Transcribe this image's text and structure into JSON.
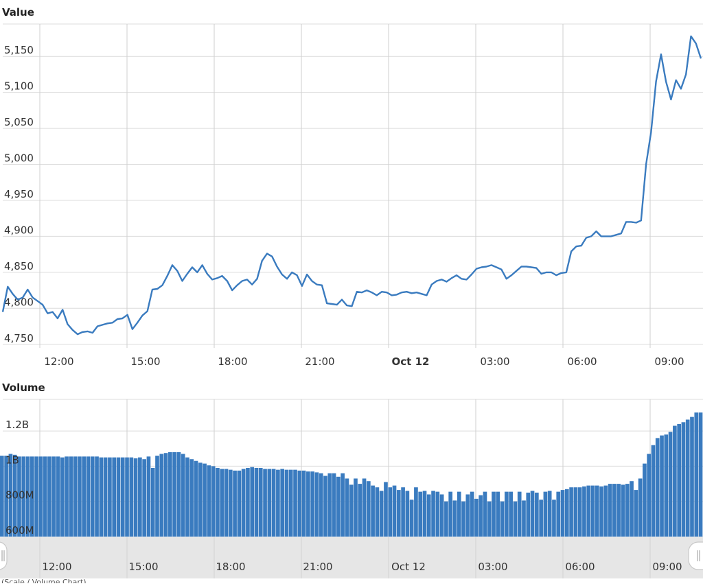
{
  "chart_data": [
    {
      "type": "line",
      "title": "Value",
      "color": "#3a7bbf",
      "ylim": [
        4745,
        5195
      ],
      "y_ticks": [
        "4,750",
        "4,800",
        "4,850",
        "4,900",
        "4,950",
        "5,000",
        "5,050",
        "5,100",
        "5,150"
      ],
      "x_ticks": [
        {
          "label": "12:00",
          "bold": false
        },
        {
          "label": "15:00",
          "bold": false
        },
        {
          "label": "18:00",
          "bold": false
        },
        {
          "label": "21:00",
          "bold": false
        },
        {
          "label": "Oct 12",
          "bold": true
        },
        {
          "label": "03:00",
          "bold": false
        },
        {
          "label": "06:00",
          "bold": false
        },
        {
          "label": "09:00",
          "bold": false
        }
      ],
      "x_start": "Oct 11 10:42",
      "x_end": "Oct 12 10:45",
      "time_step_minutes": 10,
      "grid": true,
      "values": [
        4795,
        4830,
        4820,
        4812,
        4815,
        4826,
        4815,
        4810,
        4805,
        4793,
        4795,
        4786,
        4798,
        4778,
        4770,
        4764,
        4767,
        4768,
        4766,
        4775,
        4777,
        4779,
        4780,
        4785,
        4786,
        4791,
        4771,
        4780,
        4790,
        4796,
        4826,
        4827,
        4832,
        4845,
        4860,
        4852,
        4838,
        4848,
        4857,
        4850,
        4860,
        4848,
        4840,
        4842,
        4845,
        4838,
        4825,
        4832,
        4838,
        4840,
        4833,
        4841,
        4866,
        4876,
        4872,
        4858,
        4847,
        4841,
        4850,
        4846,
        4831,
        4847,
        4838,
        4833,
        4832,
        4807,
        4806,
        4805,
        4812,
        4804,
        4803,
        4823,
        4822,
        4825,
        4822,
        4818,
        4823,
        4822,
        4818,
        4819,
        4822,
        4823,
        4821,
        4822,
        4820,
        4818,
        4833,
        4838,
        4840,
        4837,
        4842,
        4846,
        4841,
        4840,
        4847,
        4855,
        4857,
        4858,
        4860,
        4857,
        4854,
        4841,
        4846,
        4852,
        4858,
        4858,
        4857,
        4856,
        4848,
        4850,
        4850,
        4846,
        4849,
        4850,
        4879,
        4886,
        4887,
        4898,
        4900,
        4907,
        4900,
        4900,
        4900,
        4902,
        4904,
        4920,
        4920,
        4919,
        4922,
        5000,
        5045,
        5115,
        5153,
        5115,
        5090,
        5117,
        5105,
        5125,
        5178,
        5168,
        5147
      ],
      "y_suffix": ""
    },
    {
      "type": "bar",
      "title": "Volume",
      "color": "#3a7bbf",
      "ylim": [
        600,
        1380
      ],
      "y_ticks": [
        "600M",
        "800M",
        "1B",
        "1.2B"
      ],
      "x_ticks": [
        "12:00",
        "15:00",
        "18:00",
        "21:00",
        "Oct 12",
        "03:00",
        "06:00",
        "09:00"
      ],
      "values": [
        1060,
        1060,
        1070,
        1065,
        1055,
        1055,
        1055,
        1055,
        1055,
        1055,
        1055,
        1055,
        1055,
        1055,
        1050,
        1055,
        1055,
        1055,
        1055,
        1055,
        1055,
        1055,
        1055,
        1050,
        1050,
        1050,
        1050,
        1050,
        1050,
        1050,
        1050,
        1045,
        1050,
        1040,
        1055,
        990,
        1060,
        1070,
        1075,
        1080,
        1080,
        1080,
        1070,
        1050,
        1040,
        1030,
        1020,
        1015,
        1005,
        1000,
        990,
        985,
        985,
        980,
        975,
        975,
        985,
        990,
        995,
        990,
        990,
        985,
        985,
        985,
        980,
        985,
        980,
        980,
        980,
        975,
        975,
        970,
        970,
        965,
        960,
        945,
        960,
        960,
        940,
        960,
        930,
        895,
        930,
        900,
        930,
        915,
        890,
        880,
        860,
        910,
        880,
        890,
        865,
        880,
        860,
        810,
        880,
        855,
        860,
        840,
        860,
        855,
        840,
        800,
        855,
        805,
        855,
        800,
        840,
        855,
        815,
        835,
        855,
        800,
        855,
        855,
        800,
        855,
        855,
        800,
        855,
        805,
        850,
        860,
        850,
        810,
        855,
        860,
        810,
        855,
        865,
        870,
        880,
        880,
        880,
        885,
        890,
        890,
        890,
        885,
        890,
        900,
        900,
        900,
        895,
        900,
        915,
        865,
        930,
        1015,
        1070,
        1120,
        1160,
        1175,
        1180,
        1195,
        1230,
        1240,
        1250,
        1265,
        1280,
        1305,
        1305
      ]
    }
  ],
  "navigator": {
    "left_handle_icon": "drag-handle-icon",
    "right_handle_icon": "drag-handle-icon",
    "background": "#e6e6e6",
    "x_ticks": [
      "12:00",
      "15:00",
      "18:00",
      "21:00",
      "Oct 12",
      "03:00",
      "06:00",
      "09:00"
    ]
  },
  "footer_note": "(Scale / Volume Chart)"
}
